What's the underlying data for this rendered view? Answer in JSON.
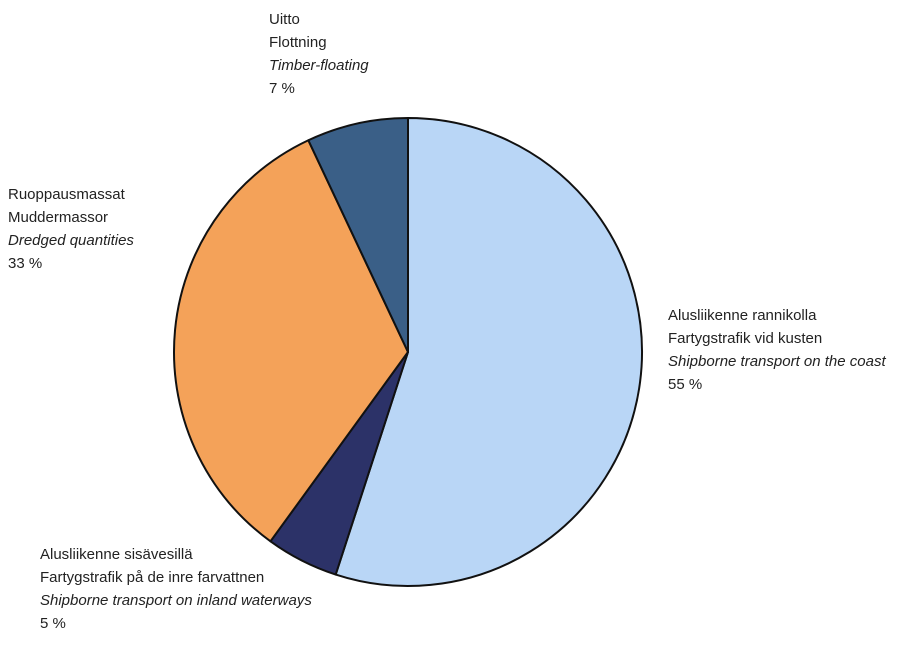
{
  "chart_data": {
    "type": "pie",
    "start_angle_deg": 0,
    "direction": "clockwise",
    "slices": [
      {
        "fi": "Alusliikenne rannikolla",
        "sv": "Fartygstrafik vid kusten",
        "en": "Shipborne transport on the coast",
        "pct_label": "55 %",
        "value": 55,
        "color": "#b9d6f6"
      },
      {
        "fi": "Alusliikenne sisävesillä",
        "sv": "Fartygstrafik på de inre farvattnen",
        "en": "Shipborne transport on inland waterways",
        "pct_label": "5 %",
        "value": 5,
        "color": "#2c3268"
      },
      {
        "fi": "Ruoppausmassat",
        "sv": "Muddermassor",
        "en": "Dredged quantities",
        "pct_label": "33 %",
        "value": 33,
        "color": "#f4a259"
      },
      {
        "fi": "Uitto",
        "sv": "Flottning",
        "en": "Timber-floating",
        "pct_label": "7 %",
        "value": 7,
        "color": "#3a5f87"
      }
    ]
  }
}
